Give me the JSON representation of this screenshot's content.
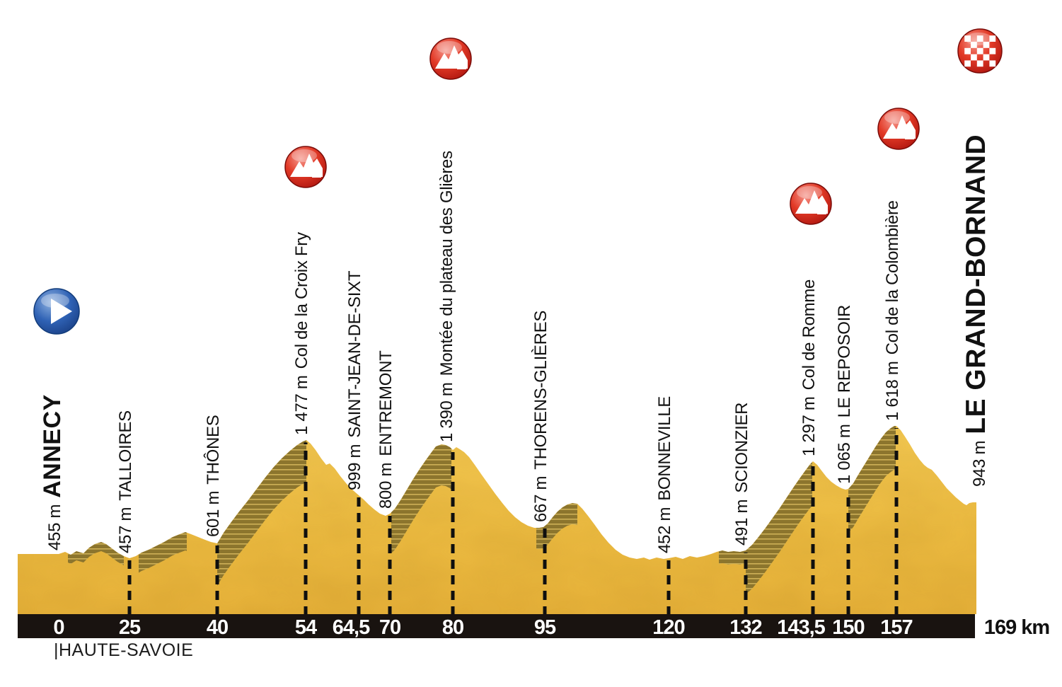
{
  "stage": {
    "department_label": "|HAUTE-SAVOIE"
  },
  "colors": {
    "terrain_light": "#F3C851",
    "terrain_mid": "#EDBC41",
    "terrain_dark": "#E7B239",
    "climb_stripe_dark": "#8C752D",
    "climb_stripe_light": "#CDB057",
    "left_block": "#9C8330",
    "axis_bar": "#191310",
    "dash_line": "#0f0f0f",
    "text": "#111111",
    "km_text": "#ffffff",
    "climb_icon_red": "#DD2C1E",
    "start_icon_blue": "#2B5CAD"
  },
  "icons": {
    "start": "play-icon",
    "climb": "mountain-icon",
    "finish": "checkered-flag-icon"
  },
  "chart_data": {
    "type": "area",
    "xlabel_unit": "km",
    "x_range": [
      0,
      169
    ],
    "y_unit": "m",
    "grid": "dashed vertical lines at each waypoint",
    "legend": "none",
    "waypoints": [
      {
        "km": 0,
        "km_label": "0",
        "elevation_m": 455,
        "elev_label": "455 m",
        "name": "ANNECY",
        "kind": "start"
      },
      {
        "km": 25,
        "km_label": "25",
        "elevation_m": 457,
        "elev_label": "457 m",
        "name": "TALLOIRES",
        "kind": "town"
      },
      {
        "km": 40,
        "km_label": "40",
        "elevation_m": 601,
        "elev_label": "601 m",
        "name": "THÔNES",
        "kind": "town"
      },
      {
        "km": 54,
        "km_label": "54",
        "elevation_m": 1477,
        "elev_label": "1 477 m",
        "name": "Col de la Croix Fry",
        "kind": "climb"
      },
      {
        "km": 64.5,
        "km_label": "64,5",
        "elevation_m": 999,
        "elev_label": "999 m",
        "name": "SAINT-JEAN-DE-SIXT",
        "kind": "town"
      },
      {
        "km": 70,
        "km_label": "70",
        "elevation_m": 800,
        "elev_label": "800 m",
        "name": "ENTREMONT",
        "kind": "town"
      },
      {
        "km": 80,
        "km_label": "80",
        "elevation_m": 1390,
        "elev_label": "1 390 m",
        "name": "Montée du plateau des Glières",
        "kind": "climb"
      },
      {
        "km": 95,
        "km_label": "95",
        "elevation_m": 667,
        "elev_label": "667 m",
        "name": "THORENS-GLIÈRES",
        "kind": "town"
      },
      {
        "km": 120,
        "km_label": "120",
        "elevation_m": 452,
        "elev_label": "452 m",
        "name": "BONNEVILLE",
        "kind": "town"
      },
      {
        "km": 132,
        "km_label": "132",
        "elevation_m": 491,
        "elev_label": "491 m",
        "name": "SCIONZIER",
        "kind": "town"
      },
      {
        "km": 143.5,
        "km_label": "143,5",
        "elevation_m": 1297,
        "elev_label": "1 297 m",
        "name": "Col de Romme",
        "kind": "climb"
      },
      {
        "km": 150,
        "km_label": "150",
        "elevation_m": 1065,
        "elev_label": "1 065 m",
        "name": "LE REPOSOIR",
        "kind": "town"
      },
      {
        "km": 157,
        "km_label": "157",
        "elevation_m": 1618,
        "elev_label": "1 618 m",
        "name": "Col de la Colombière",
        "kind": "climb"
      },
      {
        "km": 169,
        "km_label": "169 km",
        "elevation_m": 943,
        "elev_label": "943 m",
        "name": "LE GRAND-BORNAND",
        "kind": "finish"
      }
    ]
  }
}
